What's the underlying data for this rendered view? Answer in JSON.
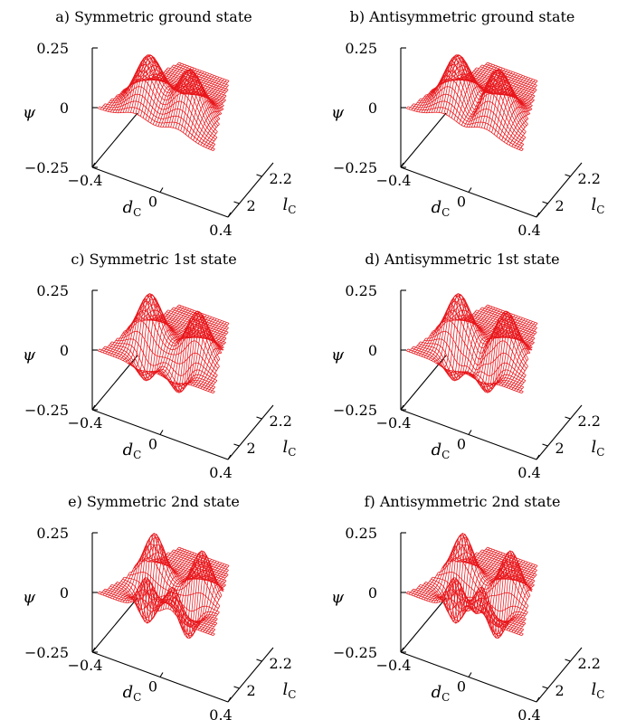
{
  "chart_data": [
    {
      "type": "surface",
      "title": "a) Symmetric ground state",
      "zlabel": "ψ",
      "xlabel": "d",
      "xlabel_sub": "C",
      "ylabel": "l",
      "ylabel_sub": "C",
      "z_ticks": [
        "0.25",
        "0",
        "−0.25"
      ],
      "x_ticks": [
        "−0.4",
        "0",
        "0.4"
      ],
      "y_ticks": [
        "2",
        "2.2"
      ],
      "zlim": [
        -0.25,
        0.25
      ],
      "xlim": [
        -0.4,
        0.4
      ],
      "ylim": [
        1.9,
        2.3
      ],
      "color": "#e8161b",
      "peaks": [
        {
          "x": -0.12,
          "y": 1.98,
          "amp": 0.21,
          "sx": 0.1,
          "sy": 0.09
        },
        {
          "x": 0.12,
          "y": 1.98,
          "amp": 0.21,
          "sx": 0.1,
          "sy": 0.09
        }
      ]
    },
    {
      "type": "surface",
      "title": "b) Antisymmetric ground state",
      "zlabel": "ψ",
      "xlabel": "d",
      "xlabel_sub": "C",
      "ylabel": "l",
      "ylabel_sub": "C",
      "z_ticks": [
        "0.25",
        "0",
        "−0.25"
      ],
      "x_ticks": [
        "−0.4",
        "0",
        "0.4"
      ],
      "y_ticks": [
        "2",
        "2.2"
      ],
      "zlim": [
        -0.25,
        0.25
      ],
      "xlim": [
        -0.4,
        0.4
      ],
      "ylim": [
        1.9,
        2.3
      ],
      "color": "#e8161b",
      "peaks": [
        {
          "x": -0.12,
          "y": 1.98,
          "amp": 0.21,
          "sx": 0.1,
          "sy": 0.09
        },
        {
          "x": 0.0,
          "y": 1.96,
          "amp": -0.06,
          "sx": 0.04,
          "sy": 0.06
        },
        {
          "x": 0.12,
          "y": 1.98,
          "amp": 0.21,
          "sx": 0.1,
          "sy": 0.09
        }
      ]
    },
    {
      "type": "surface",
      "title": "c) Symmetric 1st state",
      "zlabel": "ψ",
      "xlabel": "d",
      "xlabel_sub": "C",
      "ylabel": "l",
      "ylabel_sub": "C",
      "z_ticks": [
        "0.25",
        "0",
        "−0.25"
      ],
      "x_ticks": [
        "−0.4",
        "0",
        "0.4"
      ],
      "y_ticks": [
        "2",
        "2.2"
      ],
      "zlim": [
        -0.25,
        0.25
      ],
      "xlim": [
        -0.4,
        0.4
      ],
      "ylim": [
        1.9,
        2.3
      ],
      "color": "#e8161b",
      "peaks": [
        {
          "x": -0.14,
          "y": 2.02,
          "amp": 0.2,
          "sx": 0.09,
          "sy": 0.07
        },
        {
          "x": -0.1,
          "y": 1.93,
          "amp": -0.12,
          "sx": 0.07,
          "sy": 0.05
        },
        {
          "x": 0.14,
          "y": 2.02,
          "amp": 0.2,
          "sx": 0.09,
          "sy": 0.07
        },
        {
          "x": 0.1,
          "y": 1.93,
          "amp": -0.12,
          "sx": 0.07,
          "sy": 0.05
        }
      ]
    },
    {
      "type": "surface",
      "title": "d) Antisymmetric 1st state",
      "zlabel": "ψ",
      "xlabel": "d",
      "xlabel_sub": "C",
      "ylabel": "l",
      "ylabel_sub": "C",
      "z_ticks": [
        "0.25",
        "0",
        "−0.25"
      ],
      "x_ticks": [
        "−0.4",
        "0",
        "0.4"
      ],
      "y_ticks": [
        "2",
        "2.2"
      ],
      "zlim": [
        -0.25,
        0.25
      ],
      "xlim": [
        -0.4,
        0.4
      ],
      "ylim": [
        1.9,
        2.3
      ],
      "color": "#e8161b",
      "peaks": [
        {
          "x": -0.14,
          "y": 2.02,
          "amp": 0.2,
          "sx": 0.09,
          "sy": 0.07
        },
        {
          "x": -0.1,
          "y": 1.93,
          "amp": -0.12,
          "sx": 0.07,
          "sy": 0.05
        },
        {
          "x": 0.0,
          "y": 1.97,
          "amp": -0.05,
          "sx": 0.035,
          "sy": 0.05
        },
        {
          "x": 0.14,
          "y": 2.02,
          "amp": 0.2,
          "sx": 0.09,
          "sy": 0.07
        },
        {
          "x": 0.1,
          "y": 1.93,
          "amp": -0.12,
          "sx": 0.07,
          "sy": 0.05
        }
      ]
    },
    {
      "type": "surface",
      "title": "e) Symmetric 2nd state",
      "zlabel": "ψ",
      "xlabel": "d",
      "xlabel_sub": "C",
      "ylabel": "l",
      "ylabel_sub": "C",
      "z_ticks": [
        "0.25",
        "0",
        "−0.25"
      ],
      "x_ticks": [
        "−0.4",
        "0",
        "0.4"
      ],
      "y_ticks": [
        "2",
        "2.2"
      ],
      "zlim": [
        -0.25,
        0.25
      ],
      "xlim": [
        -0.4,
        0.4
      ],
      "ylim": [
        1.9,
        2.3
      ],
      "color": "#e8161b",
      "peaks": [
        {
          "x": -0.14,
          "y": 2.06,
          "amp": 0.19,
          "sx": 0.08,
          "sy": 0.05
        },
        {
          "x": -0.12,
          "y": 1.97,
          "amp": -0.14,
          "sx": 0.07,
          "sy": 0.045
        },
        {
          "x": -0.08,
          "y": 1.9,
          "amp": 0.12,
          "sx": 0.06,
          "sy": 0.04
        },
        {
          "x": 0.14,
          "y": 2.06,
          "amp": 0.19,
          "sx": 0.08,
          "sy": 0.05
        },
        {
          "x": 0.12,
          "y": 1.97,
          "amp": -0.14,
          "sx": 0.07,
          "sy": 0.045
        },
        {
          "x": 0.08,
          "y": 1.9,
          "amp": 0.12,
          "sx": 0.06,
          "sy": 0.04
        }
      ]
    },
    {
      "type": "surface",
      "title": "f) Antisymmetric 2nd state",
      "zlabel": "ψ",
      "xlabel": "d",
      "xlabel_sub": "C",
      "ylabel": "l",
      "ylabel_sub": "C",
      "z_ticks": [
        "0.25",
        "0",
        "−0.25"
      ],
      "x_ticks": [
        "−0.4",
        "0",
        "0.4"
      ],
      "y_ticks": [
        "2",
        "2.2"
      ],
      "zlim": [
        -0.25,
        0.25
      ],
      "xlim": [
        -0.4,
        0.4
      ],
      "ylim": [
        1.9,
        2.3
      ],
      "color": "#e8161b",
      "peaks": [
        {
          "x": -0.14,
          "y": 2.06,
          "amp": 0.19,
          "sx": 0.08,
          "sy": 0.05
        },
        {
          "x": -0.12,
          "y": 1.97,
          "amp": -0.14,
          "sx": 0.07,
          "sy": 0.045
        },
        {
          "x": -0.08,
          "y": 1.9,
          "amp": 0.12,
          "sx": 0.06,
          "sy": 0.04
        },
        {
          "x": 0.0,
          "y": 1.98,
          "amp": -0.05,
          "sx": 0.035,
          "sy": 0.05
        },
        {
          "x": 0.14,
          "y": 2.06,
          "amp": 0.19,
          "sx": 0.08,
          "sy": 0.05
        },
        {
          "x": 0.12,
          "y": 1.97,
          "amp": -0.14,
          "sx": 0.07,
          "sy": 0.045
        },
        {
          "x": 0.08,
          "y": 1.9,
          "amp": 0.12,
          "sx": 0.06,
          "sy": 0.04
        }
      ]
    }
  ]
}
